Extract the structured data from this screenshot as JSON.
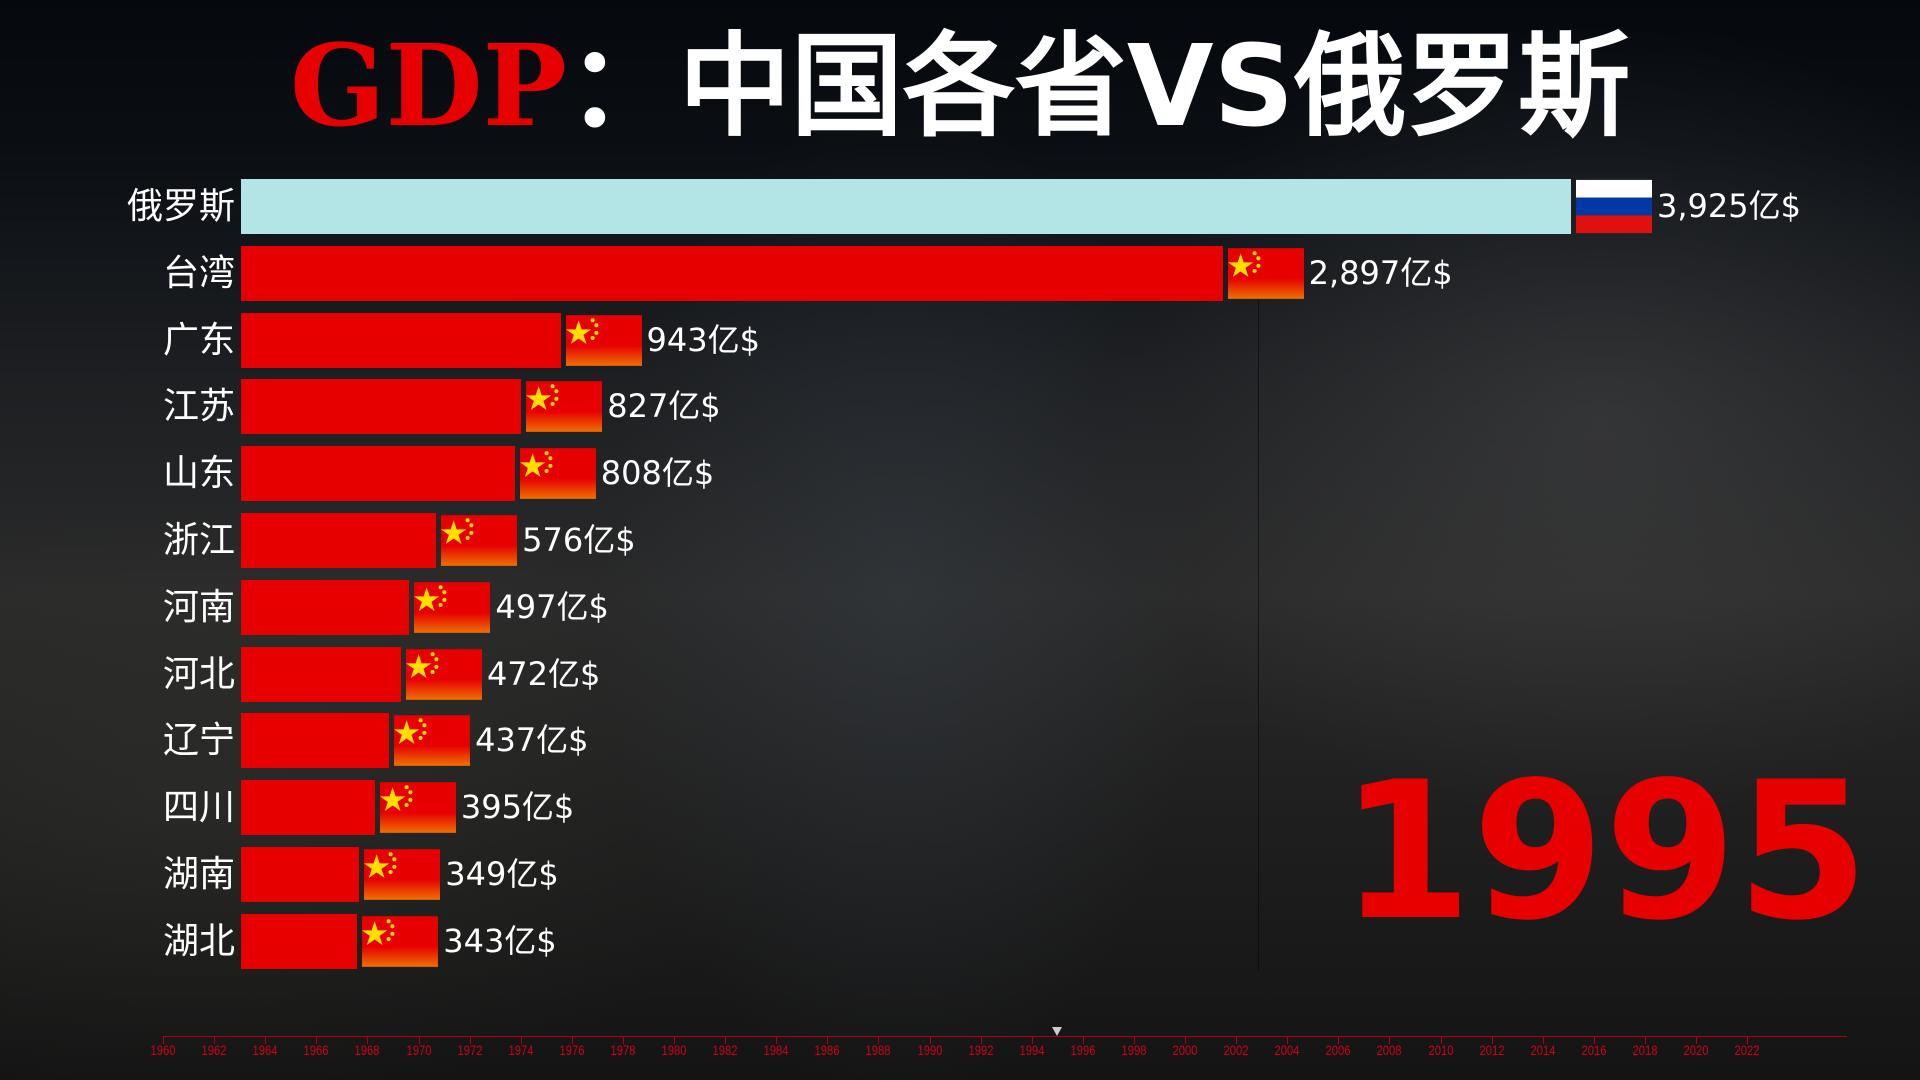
{
  "title": {
    "part1": "GDP",
    "part2": "：中国各省VS俄罗斯"
  },
  "chart_data": {
    "type": "bar",
    "orientation": "horizontal",
    "title": "GDP：中国各省VS俄罗斯",
    "unit": "亿$",
    "year": "1995",
    "categories": [
      "俄罗斯",
      "台湾",
      "广东",
      "江苏",
      "山东",
      "浙江",
      "河南",
      "河北",
      "辽宁",
      "四川",
      "湖南",
      "湖北"
    ],
    "values": [
      3925,
      2897,
      943,
      827,
      808,
      576,
      497,
      472,
      437,
      395,
      349,
      343
    ],
    "value_labels": [
      "3,925亿$",
      "2,897亿$",
      "943亿$",
      "827亿$",
      "808亿$",
      "576亿$",
      "497亿$",
      "472亿$",
      "437亿$",
      "395亿$",
      "349亿$",
      "343亿$"
    ],
    "flags": [
      "russia",
      "china",
      "china",
      "china",
      "china",
      "china",
      "china",
      "china",
      "china",
      "china",
      "china",
      "china"
    ],
    "colors": {
      "russia": "#b3e5e6",
      "china": "#e60000"
    },
    "timeline": {
      "years": [
        "1960",
        "1962",
        "1964",
        "1966",
        "1968",
        "1970",
        "1972",
        "1974",
        "1976",
        "1978",
        "1980",
        "1982",
        "1984",
        "1986",
        "1988",
        "1990",
        "1992",
        "1994",
        "1996",
        "1998",
        "2000",
        "2002",
        "2004",
        "2006",
        "2008",
        "2010",
        "2012",
        "2014",
        "2016",
        "2018",
        "2020",
        "2022"
      ],
      "range": [
        1960,
        2025
      ],
      "current": 1995
    }
  }
}
